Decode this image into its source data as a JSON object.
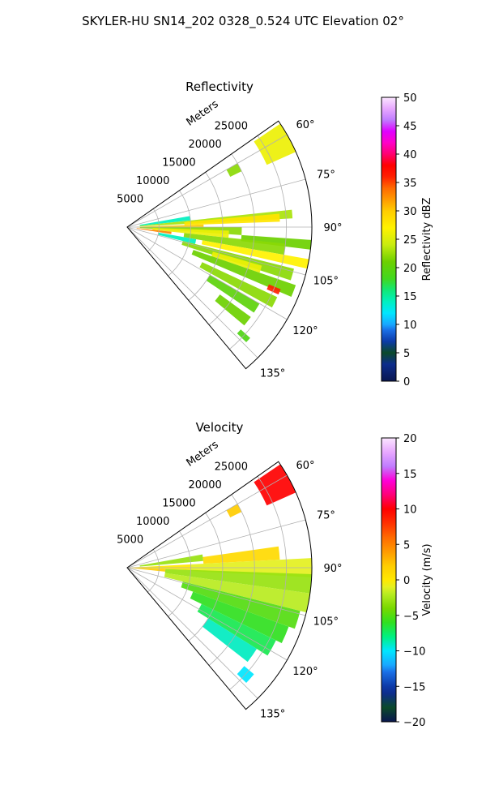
{
  "figure_title": "SKYLER-HU  SN14_202  0328_0.524 UTC Elevation 02°",
  "chart_data": [
    {
      "type": "polar-sector",
      "title": "Reflectivity",
      "range_axis_label": "Meters",
      "range_ticks": [
        5000,
        10000,
        15000,
        20000,
        25000
      ],
      "range_tick_labels": [
        "5000",
        "10000",
        "15000",
        "20000",
        "25000"
      ],
      "range_max": 29000,
      "azimuth_range_deg": [
        55,
        140
      ],
      "azimuth_ticks": [
        60,
        75,
        90,
        105,
        120,
        135
      ],
      "azimuth_tick_labels": [
        "60°",
        "75°",
        "90°",
        "105°",
        "120°",
        "135°"
      ],
      "grid": true,
      "colorbar": {
        "label": "Reflectivity dBZ",
        "range": [
          0,
          50
        ],
        "ticks": [
          0,
          5,
          10,
          15,
          20,
          25,
          30,
          35,
          40,
          45,
          50
        ],
        "tick_labels": [
          "0",
          "5",
          "10",
          "15",
          "20",
          "25",
          "30",
          "35",
          "40",
          "45",
          "50"
        ]
      },
      "cells": [
        {
          "az": [
            56,
            66
          ],
          "r": [
            24000,
            29000
          ],
          "value": 26
        },
        {
          "az": [
            60,
            64
          ],
          "r": [
            18000,
            20000
          ],
          "value": 22
        },
        {
          "az": [
            80,
            84
          ],
          "r": [
            2000,
            10000
          ],
          "value": 14
        },
        {
          "az": [
            84,
            87
          ],
          "r": [
            2000,
            26000
          ],
          "value": 23
        },
        {
          "az": [
            85,
            88
          ],
          "r": [
            9000,
            24000
          ],
          "value": 28
        },
        {
          "az": [
            88,
            91
          ],
          "r": [
            1500,
            12000
          ],
          "value": 30
        },
        {
          "az": [
            90,
            94
          ],
          "r": [
            2000,
            18000
          ],
          "value": 22
        },
        {
          "az": [
            92,
            96
          ],
          "r": [
            4000,
            16000
          ],
          "value": 26
        },
        {
          "az": [
            94,
            97
          ],
          "r": [
            18000,
            29000
          ],
          "value": 21
        },
        {
          "az": [
            96,
            99
          ],
          "r": [
            1500,
            7000
          ],
          "value": 33
        },
        {
          "az": [
            96,
            100
          ],
          "r": [
            9000,
            25000
          ],
          "value": 22
        },
        {
          "az": [
            100,
            103
          ],
          "r": [
            12000,
            29000
          ],
          "value": 27
        },
        {
          "az": [
            100,
            104
          ],
          "r": [
            5000,
            11000
          ],
          "value": 14
        },
        {
          "az": [
            104,
            108
          ],
          "r": [
            9000,
            27000
          ],
          "value": 22
        },
        {
          "az": [
            106,
            109
          ],
          "r": [
            14000,
            22000
          ],
          "value": 26
        },
        {
          "az": [
            109,
            113
          ],
          "r": [
            11000,
            28000
          ],
          "value": 21
        },
        {
          "az": [
            112,
            114
          ],
          "r": [
            24000,
            26000
          ],
          "value": 36
        },
        {
          "az": [
            115,
            119
          ],
          "r": [
            13000,
            26000
          ],
          "value": 22
        },
        {
          "az": [
            120,
            124
          ],
          "r": [
            15000,
            24000
          ],
          "value": 20
        },
        {
          "az": [
            126,
            130
          ],
          "r": [
            18000,
            24000
          ],
          "value": 21
        },
        {
          "az": [
            132,
            134
          ],
          "r": [
            24000,
            26000
          ],
          "value": 19
        }
      ]
    },
    {
      "type": "polar-sector",
      "title": "Velocity",
      "range_axis_label": "Meters",
      "range_ticks": [
        5000,
        10000,
        15000,
        20000,
        25000
      ],
      "range_tick_labels": [
        "5000",
        "10000",
        "15000",
        "20000",
        "25000"
      ],
      "range_max": 29000,
      "azimuth_range_deg": [
        55,
        140
      ],
      "azimuth_ticks": [
        60,
        75,
        90,
        105,
        120,
        135
      ],
      "azimuth_tick_labels": [
        "60°",
        "75°",
        "90°",
        "105°",
        "120°",
        "135°"
      ],
      "grid": true,
      "colorbar": {
        "label": "Velocity (m/s)",
        "range": [
          -20,
          20
        ],
        "ticks": [
          -20,
          -15,
          -10,
          -5,
          0,
          5,
          10,
          15,
          20
        ],
        "tick_labels": [
          "−20",
          "−15",
          "−10",
          "−5",
          "0",
          "5",
          "10",
          "15",
          "20"
        ]
      },
      "cells": [
        {
          "az": [
            56,
            66
          ],
          "r": [
            24000,
            29000
          ],
          "value": 10
        },
        {
          "az": [
            60,
            64
          ],
          "r": [
            18000,
            20000
          ],
          "value": 2
        },
        {
          "az": [
            80,
            85
          ],
          "r": [
            2000,
            12000
          ],
          "value": -3
        },
        {
          "az": [
            82,
            87
          ],
          "r": [
            12000,
            24000
          ],
          "value": 1
        },
        {
          "az": [
            87,
            92
          ],
          "r": [
            0,
            10000
          ],
          "value": 0
        },
        {
          "az": [
            87,
            93
          ],
          "r": [
            10000,
            29000
          ],
          "value": -1
        },
        {
          "az": [
            92,
            96
          ],
          "r": [
            0,
            6000
          ],
          "value": 2
        },
        {
          "az": [
            92,
            98
          ],
          "r": [
            6000,
            29000
          ],
          "value": -3
        },
        {
          "az": [
            98,
            104
          ],
          "r": [
            6000,
            29000
          ],
          "value": -2
        },
        {
          "az": [
            104,
            110
          ],
          "r": [
            9000,
            28000
          ],
          "value": -5
        },
        {
          "az": [
            110,
            116
          ],
          "r": [
            11000,
            27000
          ],
          "value": -6
        },
        {
          "az": [
            116,
            122
          ],
          "r": [
            13000,
            26000
          ],
          "value": -7
        },
        {
          "az": [
            122,
            128
          ],
          "r": [
            15000,
            24000
          ],
          "value": -9
        },
        {
          "az": [
            130,
            134
          ],
          "r": [
            24000,
            26000
          ],
          "value": -10
        }
      ]
    }
  ]
}
